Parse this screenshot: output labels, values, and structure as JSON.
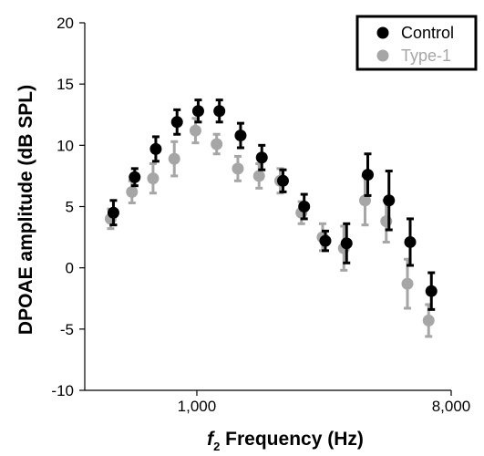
{
  "chart_data": {
    "type": "scatter",
    "x_scale": "log",
    "xlabel_italic": "f",
    "xlabel_sub": "2",
    "xlabel_rest": " Frequency (Hz)",
    "ylabel": "DPOAE amplitude (dB SPL)",
    "xlim": [
      400,
      8000
    ],
    "ylim": [
      -10,
      20
    ],
    "x_ticks": [
      1000,
      8000
    ],
    "x_tick_labels": [
      "1,000",
      "8,000"
    ],
    "y_ticks": [
      -10,
      -5,
      0,
      5,
      10,
      15,
      20
    ],
    "y_tick_labels": [
      "-10",
      "-5",
      "0",
      "5",
      "10",
      "15",
      "20"
    ],
    "grid": false,
    "legend_position": "top-right",
    "series": [
      {
        "name": "Control",
        "color": "#000000",
        "points": [
          {
            "x": 500,
            "y": 4.5,
            "err": 1.0
          },
          {
            "x": 595,
            "y": 7.4,
            "err": 0.7
          },
          {
            "x": 707,
            "y": 9.7,
            "err": 1.0
          },
          {
            "x": 841,
            "y": 11.9,
            "err": 1.0
          },
          {
            "x": 1000,
            "y": 12.8,
            "err": 0.9
          },
          {
            "x": 1189,
            "y": 12.8,
            "err": 0.9
          },
          {
            "x": 1414,
            "y": 10.8,
            "err": 1.0
          },
          {
            "x": 1682,
            "y": 9.0,
            "err": 1.0
          },
          {
            "x": 2000,
            "y": 7.1,
            "err": 0.9
          },
          {
            "x": 2378,
            "y": 5.0,
            "err": 1.0
          },
          {
            "x": 2828,
            "y": 2.2,
            "err": 0.8
          },
          {
            "x": 3364,
            "y": 2.0,
            "err": 1.6
          },
          {
            "x": 4000,
            "y": 7.6,
            "err": 1.7
          },
          {
            "x": 4757,
            "y": 5.5,
            "err": 2.4
          },
          {
            "x": 5657,
            "y": 2.1,
            "err": 1.9
          },
          {
            "x": 6727,
            "y": -1.9,
            "err": 1.5
          }
        ]
      },
      {
        "name": "Type-1",
        "color": "#a6a6a6",
        "points": [
          {
            "x": 500,
            "y": 4.0,
            "err": 0.8
          },
          {
            "x": 595,
            "y": 6.2,
            "err": 0.9
          },
          {
            "x": 707,
            "y": 7.3,
            "err": 1.2
          },
          {
            "x": 841,
            "y": 8.9,
            "err": 1.4
          },
          {
            "x": 1000,
            "y": 11.2,
            "err": 1.0
          },
          {
            "x": 1189,
            "y": 10.1,
            "err": 0.8
          },
          {
            "x": 1414,
            "y": 8.1,
            "err": 1.0
          },
          {
            "x": 1682,
            "y": 7.5,
            "err": 1.0
          },
          {
            "x": 2000,
            "y": 7.1,
            "err": 1.0
          },
          {
            "x": 2378,
            "y": 4.5,
            "err": 0.9
          },
          {
            "x": 2828,
            "y": 2.5,
            "err": 1.1
          },
          {
            "x": 3364,
            "y": 1.6,
            "err": 1.8
          },
          {
            "x": 4000,
            "y": 5.5,
            "err": 2.0
          },
          {
            "x": 4757,
            "y": 3.8,
            "err": 1.7
          },
          {
            "x": 5657,
            "y": -1.3,
            "err": 2.0
          },
          {
            "x": 6727,
            "y": -4.3,
            "err": 1.3
          }
        ]
      }
    ]
  }
}
